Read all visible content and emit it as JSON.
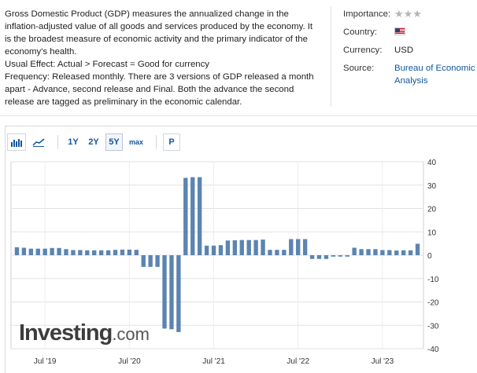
{
  "description": {
    "line1": "Gross Domestic Product (GDP) measures the annualized change in the inflation-adjusted value of all goods and services produced by the economy. It is the broadest measure of economic activity and the primary indicator of the economy's health.",
    "line2": "Usual Effect: Actual > Forecast = Good for currency",
    "line3": "Frequency: Released monthly. There are 3 versions of GDP released a month apart - Advance, second release and Final. Both the advance the second release are tagged as preliminary in the economic calendar."
  },
  "meta": {
    "importance_label": "Importance:",
    "importance_stars": "★★★",
    "country_label": "Country:",
    "country_flag": "us-flag-icon",
    "currency_label": "Currency:",
    "currency_value": "USD",
    "source_label": "Source:",
    "source_value": "Bureau of Economic Analysis"
  },
  "toolbar": {
    "bar_icon": "bar-chart-icon",
    "line_icon": "line-chart-icon",
    "ranges": [
      "1Y",
      "2Y",
      "5Y",
      "max"
    ],
    "active_range": "5Y",
    "p_label": "P"
  },
  "colors": {
    "bar": "#5b84b1",
    "link": "#1256a0",
    "grid": "#e2e2e2"
  },
  "logo": {
    "text_main": "Investing",
    "text_suffix": ".com"
  },
  "chart_data": {
    "type": "bar",
    "x_tick_labels": [
      "Jul '19",
      "Jul '20",
      "Jul '21",
      "Jul '22",
      "Jul '23"
    ],
    "y_ticks": [
      40,
      30,
      20,
      10,
      0,
      -10,
      -20,
      -30,
      -40
    ],
    "ylim": [
      -40,
      40
    ],
    "grid": true,
    "values": [
      3.4,
      3.2,
      2.8,
      2.8,
      2.8,
      3.1,
      3.1,
      2.6,
      2.2,
      2.2,
      2.1,
      2.1,
      2.1,
      2.1,
      2.3,
      2.4,
      2.4,
      2.3,
      -5.0,
      -5.0,
      -5.0,
      -31.4,
      -31.7,
      -32.9,
      33.1,
      33.4,
      33.4,
      4.1,
      4.1,
      4.3,
      6.3,
      6.4,
      6.5,
      6.5,
      6.5,
      6.7,
      2.3,
      2.3,
      2.3,
      6.9,
      6.9,
      6.9,
      -1.6,
      -1.6,
      -1.6,
      -0.6,
      -0.6,
      -0.6,
      3.2,
      2.6,
      2.6,
      2.6,
      2.2,
      2.2,
      2.0,
      2.1,
      2.1,
      4.9
    ],
    "plot_style": "dense"
  }
}
